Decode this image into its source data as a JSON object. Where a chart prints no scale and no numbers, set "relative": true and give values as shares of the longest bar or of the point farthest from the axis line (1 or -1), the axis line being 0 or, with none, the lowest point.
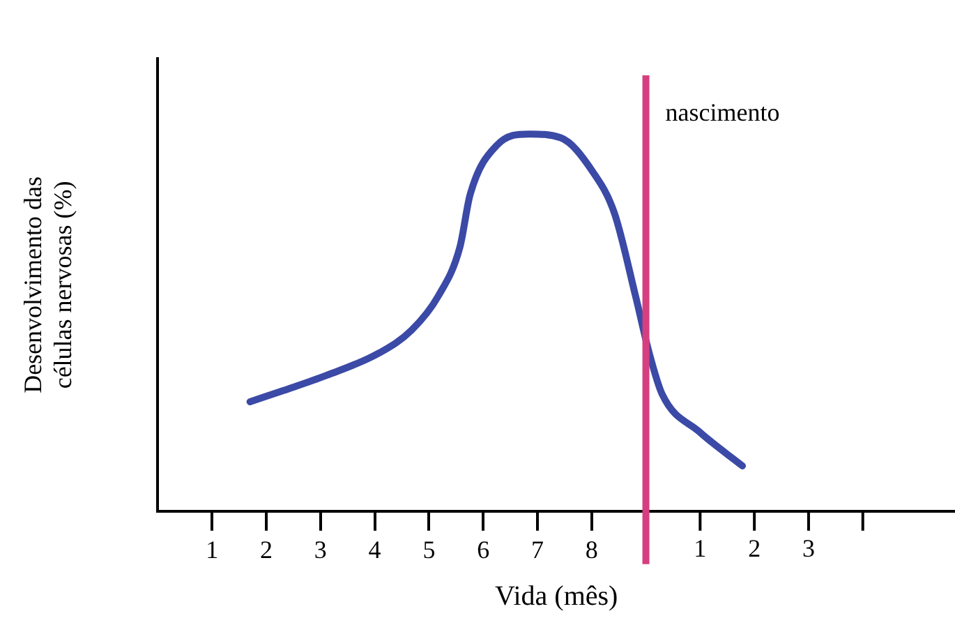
{
  "chart_data": {
    "type": "line",
    "relative": true,
    "xlabel": "Vida (mês)",
    "ylabel": "Desenvolvimento das células nervosas (%)",
    "x": [
      1.7,
      2.32,
      3.11,
      4.09,
      4.68,
      5.17,
      5.57,
      5.76,
      6.25,
      6.84,
      7.43,
      8.02,
      8.42,
      8.81,
      9.06,
      9.3,
      9.99,
      10.78
    ],
    "series": [
      {
        "color": "#3b4aa6",
        "values": [
          0.29,
          0.32,
          0.36,
          0.42,
          0.48,
          0.57,
          0.7,
          0.84,
          0.97,
          1.0,
          0.99,
          0.9,
          0.79,
          0.57,
          0.42,
          0.31,
          0.21,
          0.12
        ]
      }
    ],
    "xlim": [
      0,
      14.7
    ],
    "xticks": [
      1,
      2,
      3,
      4,
      5,
      6,
      7,
      8,
      {
        "value": 9,
        "label": null
      }
    ],
    "x2lim": [
      -9,
      5.7
    ],
    "x2ticks": [
      1,
      2,
      3,
      {
        "value": 4,
        "label": null
      }
    ],
    "ref_lines": [
      {
        "axis": "x",
        "value": 9,
        "label": "nascimento",
        "color": "#d63f7f"
      }
    ],
    "grid": false,
    "legend": false,
    "marker": "none",
    "line_style": "solid"
  }
}
